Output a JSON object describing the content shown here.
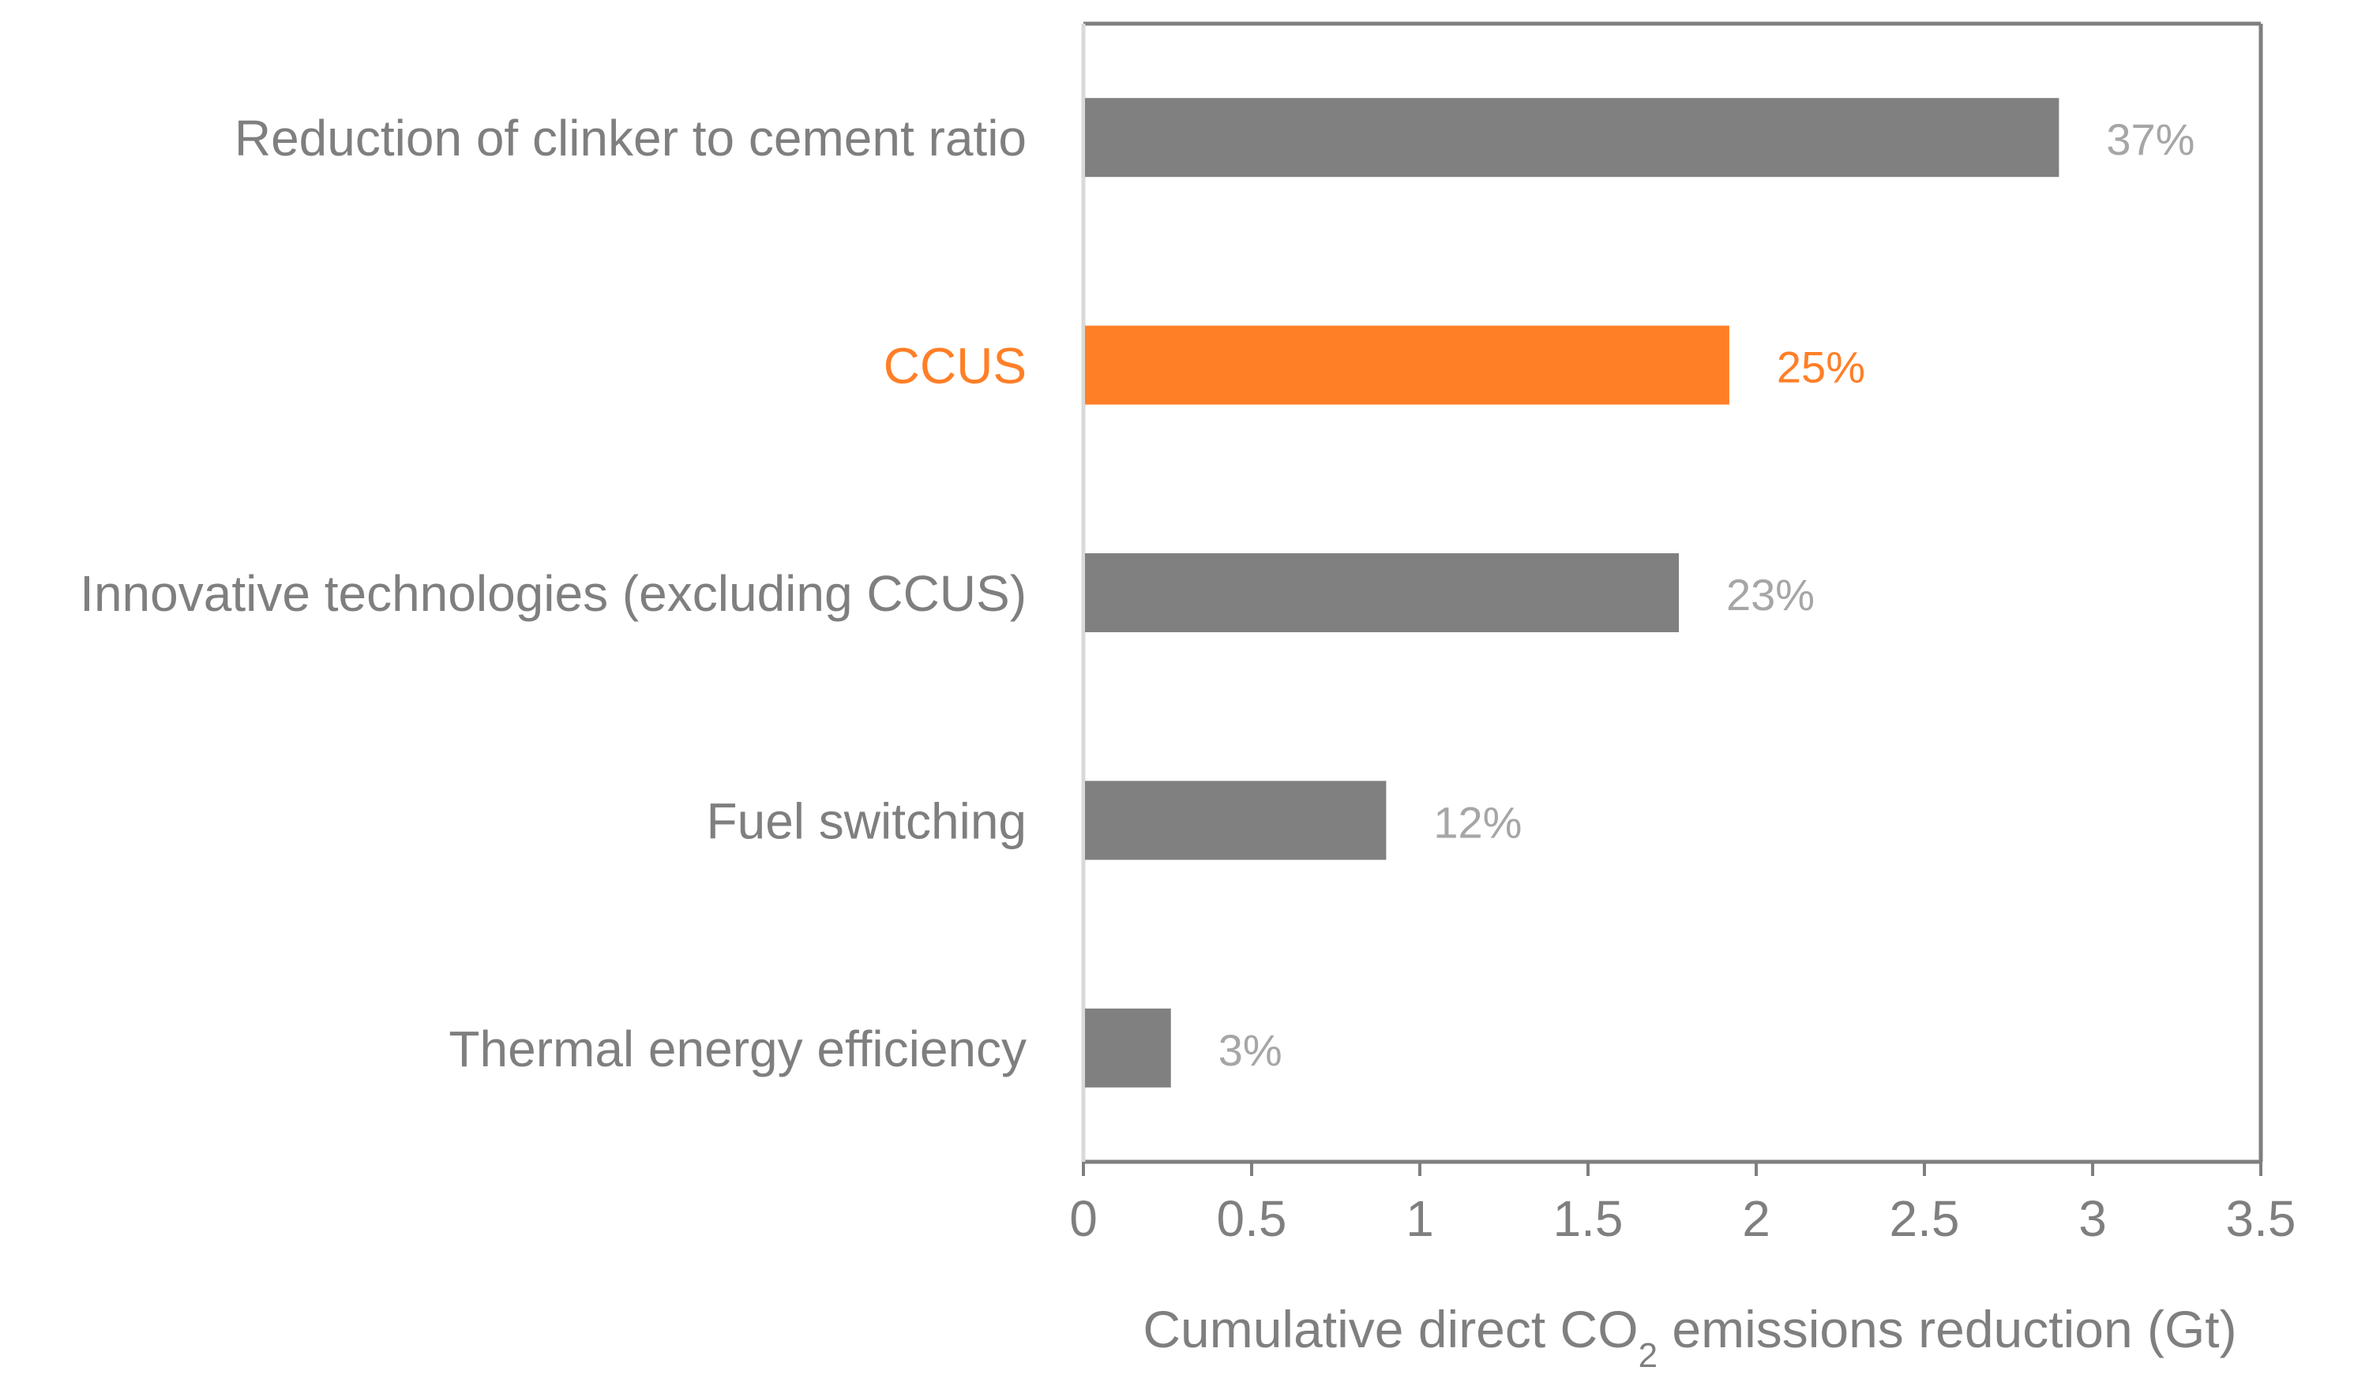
{
  "chart_data": {
    "type": "bar",
    "orientation": "horizontal",
    "title": "",
    "categories": [
      "Reduction of clinker to cement ratio",
      "CCUS",
      "Innovative technologies (excluding CCUS)",
      "Fuel switching",
      "Thermal energy efficiency"
    ],
    "values": [
      2.9,
      1.92,
      1.77,
      0.9,
      0.26
    ],
    "data_labels": [
      "37%",
      "25%",
      "23%",
      "12%",
      "3%"
    ],
    "highlight_index": 1,
    "bar_colors": [
      "#808080",
      "#FF7F27",
      "#808080",
      "#808080",
      "#808080"
    ],
    "label_colors": [
      "#7F7F7F",
      "#FF7F27",
      "#7F7F7F",
      "#7F7F7F",
      "#7F7F7F"
    ],
    "data_label_colors": [
      "#A6A6A6",
      "#FF7F27",
      "#A6A6A6",
      "#A6A6A6",
      "#A6A6A6"
    ],
    "xlim": [
      0,
      3.5
    ],
    "x_ticks": [
      0,
      0.5,
      1,
      1.5,
      2,
      2.5,
      3,
      3.5
    ],
    "x_tick_labels": [
      "0",
      "0.5",
      "1",
      "1.5",
      "2",
      "2.5",
      "3",
      "3.5"
    ],
    "xlabel": {
      "prefix": "Cumulative direct CO",
      "subscript": "2",
      "suffix": " emissions reduction (Gt)"
    },
    "ylabel": "",
    "grid": false,
    "frame_color": "#7F7F7F",
    "axis_line_color": "#D9D9D9",
    "text_color": "#7F7F7F"
  }
}
